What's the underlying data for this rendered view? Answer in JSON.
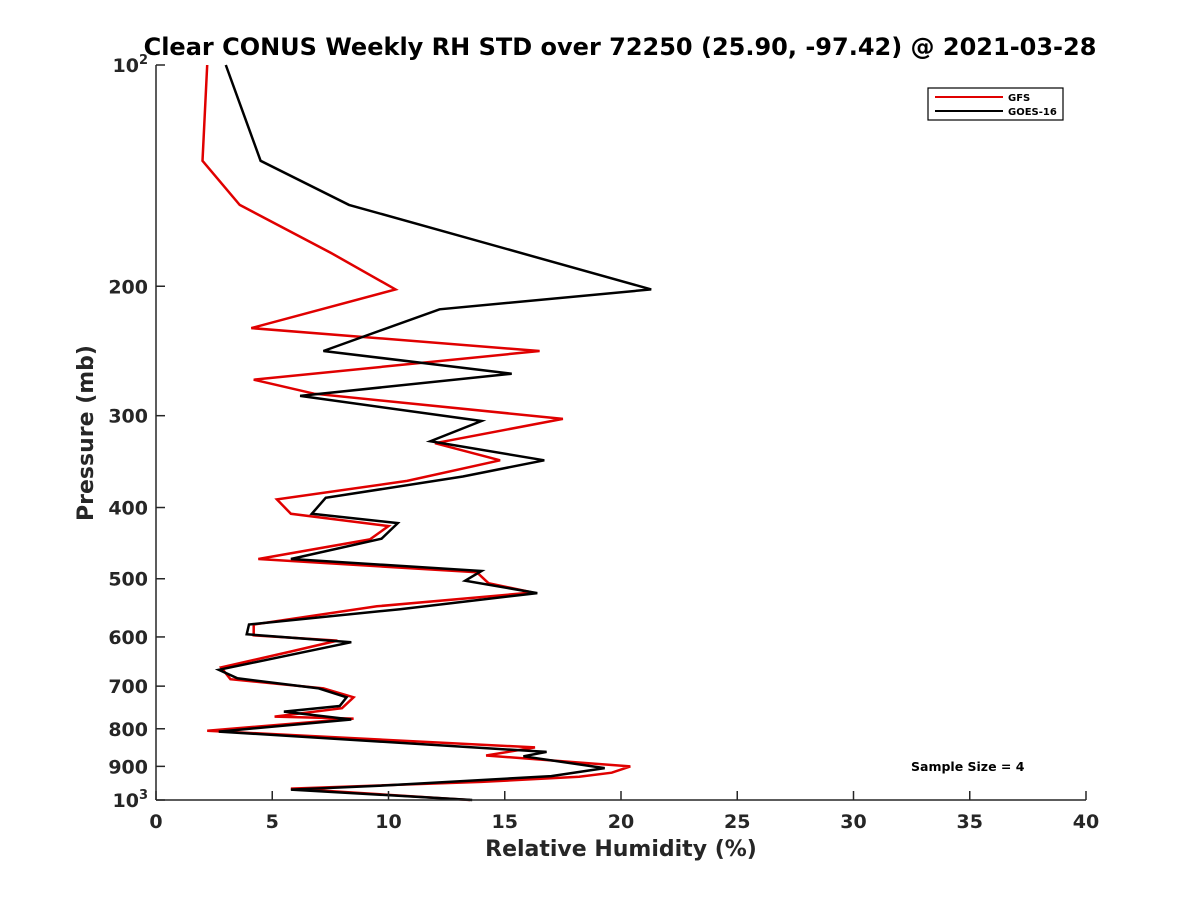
{
  "chart_data": {
    "type": "line",
    "title": "Clear CONUS Weekly RH STD over 72250 (25.90, -97.42) @ 2021-03-28",
    "xlabel": "Relative Humidity (%)",
    "ylabel": "Pressure (mb)",
    "xlim": [
      0,
      40
    ],
    "ylim": [
      100,
      1000
    ],
    "y_scale": "log",
    "y_reversed": true,
    "grid": false,
    "x_ticks": [
      0,
      5,
      10,
      15,
      20,
      25,
      30,
      35,
      40
    ],
    "x_tick_labels": [
      "0",
      "5",
      "10",
      "15",
      "20",
      "25",
      "30",
      "35",
      "40"
    ],
    "y_ticks": [
      100,
      200,
      300,
      400,
      500,
      600,
      700,
      800,
      900,
      1000
    ],
    "y_tick_labels": [
      {
        "base": "10",
        "exp": "2"
      },
      {
        "base": "200",
        "exp": ""
      },
      {
        "base": "300",
        "exp": ""
      },
      {
        "base": "400",
        "exp": ""
      },
      {
        "base": "500",
        "exp": ""
      },
      {
        "base": "600",
        "exp": ""
      },
      {
        "base": "700",
        "exp": ""
      },
      {
        "base": "800",
        "exp": ""
      },
      {
        "base": "900",
        "exp": ""
      },
      {
        "base": "10",
        "exp": "3"
      }
    ],
    "legend_position": "top-right",
    "annotation": "Sample Size = 4",
    "series": [
      {
        "name": "GFS",
        "color": "#e00000",
        "points": [
          [
            2.2,
            100
          ],
          [
            2.0,
            135
          ],
          [
            3.6,
            155
          ],
          [
            7.5,
            180
          ],
          [
            10.3,
            202
          ],
          [
            4.1,
            228
          ],
          [
            16.5,
            245
          ],
          [
            4.2,
            268
          ],
          [
            6.8,
            280
          ],
          [
            17.5,
            303
          ],
          [
            12.0,
            327
          ],
          [
            14.8,
            345
          ],
          [
            10.8,
            368
          ],
          [
            5.2,
            390
          ],
          [
            5.8,
            408
          ],
          [
            10.0,
            424
          ],
          [
            9.2,
            442
          ],
          [
            4.4,
            470
          ],
          [
            13.8,
            490
          ],
          [
            14.3,
            507
          ],
          [
            16.2,
            522
          ],
          [
            9.5,
            545
          ],
          [
            4.2,
            577
          ],
          [
            4.2,
            597
          ],
          [
            7.8,
            607
          ],
          [
            5.8,
            628
          ],
          [
            2.8,
            660
          ],
          [
            3.2,
            685
          ],
          [
            7.2,
            705
          ],
          [
            8.5,
            725
          ],
          [
            8.0,
            750
          ],
          [
            5.1,
            770
          ],
          [
            8.5,
            775
          ],
          [
            2.2,
            805
          ],
          [
            16.3,
            848
          ],
          [
            14.2,
            870
          ],
          [
            20.4,
            900
          ],
          [
            19.6,
            918
          ],
          [
            18.2,
            930
          ],
          [
            14.0,
            945
          ],
          [
            5.8,
            965
          ],
          [
            13.5,
            1000
          ]
        ]
      },
      {
        "name": "GOES-16",
        "color": "#000000",
        "points": [
          [
            3.0,
            100
          ],
          [
            4.5,
            135
          ],
          [
            8.3,
            155
          ],
          [
            21.3,
            202
          ],
          [
            12.2,
            215
          ],
          [
            7.2,
            245
          ],
          [
            15.3,
            263
          ],
          [
            6.2,
            282
          ],
          [
            14.0,
            305
          ],
          [
            11.8,
            325
          ],
          [
            16.7,
            345
          ],
          [
            13.2,
            363
          ],
          [
            7.3,
            388
          ],
          [
            6.7,
            408
          ],
          [
            10.4,
            420
          ],
          [
            9.7,
            441
          ],
          [
            5.8,
            470
          ],
          [
            14.0,
            488
          ],
          [
            13.3,
            503
          ],
          [
            16.4,
            523
          ],
          [
            10.5,
            550
          ],
          [
            4.0,
            577
          ],
          [
            3.9,
            595
          ],
          [
            8.4,
            610
          ],
          [
            2.7,
            665
          ],
          [
            3.5,
            683
          ],
          [
            7.0,
            705
          ],
          [
            8.2,
            725
          ],
          [
            7.9,
            745
          ],
          [
            5.5,
            758
          ],
          [
            8.4,
            777
          ],
          [
            2.7,
            807
          ],
          [
            16.8,
            860
          ],
          [
            15.8,
            872
          ],
          [
            19.3,
            905
          ],
          [
            17.0,
            928
          ],
          [
            10.0,
            955
          ],
          [
            5.8,
            968
          ],
          [
            13.6,
            1000
          ]
        ]
      }
    ]
  }
}
